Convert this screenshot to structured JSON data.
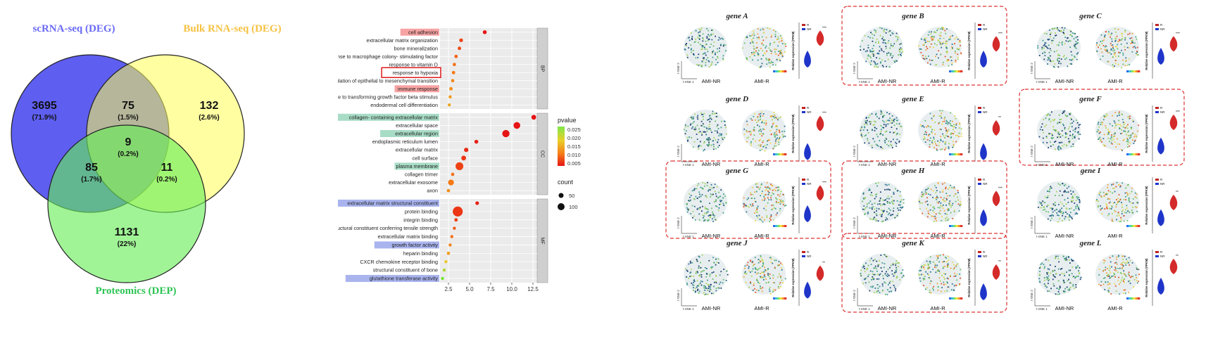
{
  "venn": {
    "sets": [
      {
        "label": "scRNA-seq (DEG)",
        "color": "#5b5bf0",
        "text_color": "#6a6af5"
      },
      {
        "label": "Bulk RNA-seq (DEG)",
        "color": "#ffff66",
        "text_color": "#f5c242"
      },
      {
        "label": "Proteomics (DEP)",
        "color": "#66ee66",
        "text_color": "#2ec454"
      }
    ],
    "regions": [
      {
        "id": "a_only",
        "count": "3695",
        "pct": "(71.9%)"
      },
      {
        "id": "ab",
        "count": "75",
        "pct": "(1.5%)"
      },
      {
        "id": "b_only",
        "count": "132",
        "pct": "(2.6%)"
      },
      {
        "id": "abc",
        "count": "9",
        "pct": "(0.2%)"
      },
      {
        "id": "ac",
        "count": "85",
        "pct": "(1.7%)"
      },
      {
        "id": "bc",
        "count": "11",
        "pct": "(0.2%)"
      },
      {
        "id": "c_only",
        "count": "1131",
        "pct": "(22%)"
      }
    ]
  },
  "chart_data": {
    "type": "scatter",
    "xlim": [
      1.5,
      13
    ],
    "xticks": [
      "2.5",
      "5.0",
      "7.5",
      "10.0",
      "12.5"
    ],
    "xtick_values": [
      2.5,
      5.0,
      7.5,
      10.0,
      12.5
    ],
    "panels": [
      {
        "name": "BP",
        "terms": [
          {
            "label": "cell adhesion",
            "x": 6.8,
            "count": 20,
            "p": 0.001,
            "hl": "red"
          },
          {
            "label": "extracellular matrix organization",
            "x": 4.0,
            "count": 18,
            "p": 0.006,
            "hl": ""
          },
          {
            "label": "bone mineralization",
            "x": 3.8,
            "count": 16,
            "p": 0.007,
            "hl": ""
          },
          {
            "label": "response to macrophage colony- stimulating factor",
            "x": 3.4,
            "count": 15,
            "p": 0.009,
            "hl": ""
          },
          {
            "label": "response to vitamin D",
            "x": 3.2,
            "count": 14,
            "p": 0.01,
            "hl": ""
          },
          {
            "label": "response to hypoxia",
            "x": 3.1,
            "count": 15,
            "p": 0.011,
            "hl": "box"
          },
          {
            "label": "positive regulation of epithelial to mesenchymal transition",
            "x": 3.0,
            "count": 14,
            "p": 0.012,
            "hl": ""
          },
          {
            "label": "immune response",
            "x": 2.8,
            "count": 16,
            "p": 0.013,
            "hl": "red"
          },
          {
            "label": "cellular response to transforming growth factor beta stimulus",
            "x": 2.7,
            "count": 13,
            "p": 0.014,
            "hl": ""
          },
          {
            "label": "endodermal cell differentiation",
            "x": 2.6,
            "count": 12,
            "p": 0.015,
            "hl": ""
          }
        ]
      },
      {
        "name": "CC",
        "terms": [
          {
            "label": "collagen- containing extracellular matrix",
            "x": 12.6,
            "count": 30,
            "p": 0.0005,
            "hl": "green"
          },
          {
            "label": "extracellular space",
            "x": 10.6,
            "count": 60,
            "p": 0.001,
            "hl": ""
          },
          {
            "label": "extracellular region",
            "x": 9.3,
            "count": 70,
            "p": 0.001,
            "hl": "green"
          },
          {
            "label": "endoplasmic reticulum lumen",
            "x": 5.8,
            "count": 20,
            "p": 0.003,
            "hl": ""
          },
          {
            "label": "extracellular matrix",
            "x": 4.6,
            "count": 25,
            "p": 0.004,
            "hl": ""
          },
          {
            "label": "cell surface",
            "x": 4.3,
            "count": 30,
            "p": 0.005,
            "hl": ""
          },
          {
            "label": "plasma membrane",
            "x": 3.8,
            "count": 80,
            "p": 0.006,
            "hl": "green"
          },
          {
            "label": "collagen trimer",
            "x": 3.0,
            "count": 14,
            "p": 0.01,
            "hl": ""
          },
          {
            "label": "extracellular exosome",
            "x": 2.8,
            "count": 45,
            "p": 0.011,
            "hl": ""
          },
          {
            "label": "axon",
            "x": 2.5,
            "count": 15,
            "p": 0.013,
            "hl": ""
          }
        ]
      },
      {
        "name": "MF",
        "terms": [
          {
            "label": "extracellular matrix structural constituent",
            "x": 5.9,
            "count": 18,
            "p": 0.003,
            "hl": "blue"
          },
          {
            "label": "protein binding",
            "x": 3.6,
            "count": 130,
            "p": 0.005,
            "hl": ""
          },
          {
            "label": "integrin binding",
            "x": 3.4,
            "count": 16,
            "p": 0.006,
            "hl": ""
          },
          {
            "label": "acellular matrix structural constituent conferring tensile strength",
            "x": 3.2,
            "count": 12,
            "p": 0.008,
            "hl": ""
          },
          {
            "label": "extracellular matrix binding",
            "x": 2.9,
            "count": 11,
            "p": 0.01,
            "hl": ""
          },
          {
            "label": "growth factor activity",
            "x": 2.7,
            "count": 13,
            "p": 0.012,
            "hl": "blue"
          },
          {
            "label": "heparin binding",
            "x": 2.5,
            "count": 14,
            "p": 0.014,
            "hl": ""
          },
          {
            "label": "CXCR chemokine receptor binding",
            "x": 2.2,
            "count": 10,
            "p": 0.018,
            "hl": ""
          },
          {
            "label": "structural constituent of bone",
            "x": 2.0,
            "count": 9,
            "p": 0.022,
            "hl": ""
          },
          {
            "label": "glutathione transferase activity",
            "x": 1.8,
            "count": 9,
            "p": 0.026,
            "hl": "blue"
          }
        ]
      }
    ],
    "legend": {
      "pvalue_title": "pvalue",
      "pvalue_ticks": [
        "0.025",
        "0.020",
        "0.015",
        "0.010",
        "0.005"
      ],
      "pvalue_tick_values": [
        0.025,
        0.02,
        0.015,
        0.01,
        0.005
      ],
      "count_title": "count",
      "count_entries": [
        {
          "label": "50",
          "value": 50
        },
        {
          "label": "100",
          "value": 100
        }
      ]
    }
  },
  "tsne": {
    "axis_y": "t-SNE 2",
    "axis_x": "t-SNE 1",
    "left_label": "AMI-NR",
    "right_label": "AMI-R",
    "violin_ylabel": "Relative expression (FPKM)",
    "legend_r": "R",
    "legend_nr": "NR",
    "panels": [
      {
        "title": "gene A",
        "boxed": false,
        "sig": "***",
        "pos": "low",
        "r_level": 0.72,
        "nr_level": 0.25
      },
      {
        "title": "gene B",
        "boxed": true,
        "sig": "***",
        "pos": "mid",
        "r_level": 0.62,
        "nr_level": 0.25
      },
      {
        "title": "gene C",
        "boxed": false,
        "sig": "***",
        "pos": "mid",
        "r_level": 0.62,
        "nr_level": 0.3
      },
      {
        "title": "gene D",
        "boxed": false,
        "sig": "***",
        "pos": "mid",
        "r_level": 0.68,
        "nr_level": 0.08
      },
      {
        "title": "gene E",
        "boxed": false,
        "sig": "**",
        "pos": "mid",
        "r_level": 0.6,
        "nr_level": 0.08
      },
      {
        "title": "gene F",
        "boxed": true,
        "sig": "***",
        "pos": "mid",
        "r_level": 0.7,
        "nr_level": 0.18
      },
      {
        "title": "gene G",
        "boxed": true,
        "sig": "***",
        "pos": "mid",
        "r_level": 0.72,
        "nr_level": 0.25
      },
      {
        "title": "gene H",
        "boxed": true,
        "sig": "***",
        "pos": "mid",
        "r_level": 0.62,
        "nr_level": 0.18
      },
      {
        "title": "gene I",
        "boxed": false,
        "sig": "**",
        "pos": "mid",
        "r_level": 0.55,
        "nr_level": 0.18
      },
      {
        "title": "gene J",
        "boxed": false,
        "sig": "**",
        "pos": "mid",
        "r_level": 0.58,
        "nr_level": 0.18
      },
      {
        "title": "gene K",
        "boxed": true,
        "sig": "**",
        "pos": "mid",
        "r_level": 0.6,
        "nr_level": 0.15
      },
      {
        "title": "gene L",
        "boxed": false,
        "sig": "**",
        "pos": "low",
        "r_level": 0.7,
        "nr_level": 0.25
      }
    ]
  }
}
